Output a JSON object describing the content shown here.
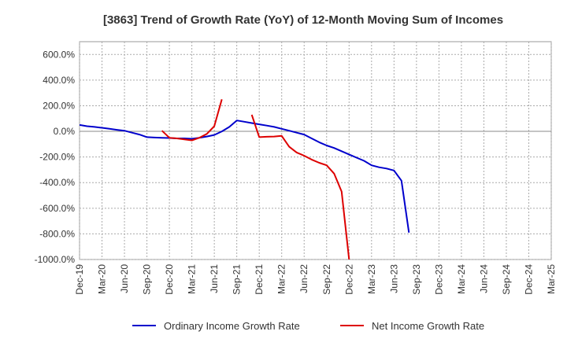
{
  "chart_data": {
    "type": "line",
    "title": "[3863]  Trend of Growth Rate (YoY) of 12-Month Moving Sum of Incomes",
    "xlabel": "",
    "ylabel": "",
    "ylim": [
      -1000,
      700
    ],
    "y_ticks": [
      "600.0%",
      "400.0%",
      "200.0%",
      "0.0%",
      "-200.0%",
      "-400.0%",
      "-600.0%",
      "-800.0%",
      "-1000.0%"
    ],
    "y_tick_values": [
      600,
      400,
      200,
      0,
      -200,
      -400,
      -600,
      -800,
      -1000
    ],
    "x_ticks": [
      "Dec-19",
      "Mar-20",
      "Jun-20",
      "Sep-20",
      "Dec-20",
      "Mar-21",
      "Jun-21",
      "Sep-21",
      "Dec-21",
      "Mar-22",
      "Jun-22",
      "Sep-22",
      "Dec-22",
      "Mar-23",
      "Jun-23",
      "Sep-23",
      "Dec-23",
      "Mar-24",
      "Jun-24",
      "Sep-24",
      "Dec-24",
      "Mar-25"
    ],
    "grid": true,
    "legend_position": "bottom",
    "series": [
      {
        "name": "Ordinary Income Growth Rate",
        "color": "#0000cc",
        "values": [
          [
            "Dec-19",
            50
          ],
          [
            "Jan-20",
            40
          ],
          [
            "Feb-20",
            35
          ],
          [
            "Mar-20",
            28
          ],
          [
            "Apr-20",
            20
          ],
          [
            "May-20",
            12
          ],
          [
            "Jun-20",
            5
          ],
          [
            "Jul-20",
            -10
          ],
          [
            "Aug-20",
            -25
          ],
          [
            "Sep-20",
            -45
          ],
          [
            "Oct-20",
            -48
          ],
          [
            "Nov-20",
            -50
          ],
          [
            "Dec-20",
            -52
          ],
          [
            "Jan-21",
            -55
          ],
          [
            "Feb-21",
            -55
          ],
          [
            "Mar-21",
            -58
          ],
          [
            "Apr-21",
            -50
          ],
          [
            "May-21",
            -40
          ],
          [
            "Jun-21",
            -28
          ],
          [
            "Jul-21",
            0
          ],
          [
            "Aug-21",
            35
          ],
          [
            "Sep-21",
            85
          ],
          [
            "Oct-21",
            75
          ],
          [
            "Nov-21",
            65
          ],
          [
            "Dec-21",
            55
          ],
          [
            "Jan-22",
            45
          ],
          [
            "Feb-22",
            35
          ],
          [
            "Mar-22",
            20
          ],
          [
            "Apr-22",
            5
          ],
          [
            "May-22",
            -10
          ],
          [
            "Jun-22",
            -25
          ],
          [
            "Jul-22",
            -55
          ],
          [
            "Aug-22",
            -85
          ],
          [
            "Sep-22",
            -110
          ],
          [
            "Oct-22",
            -130
          ],
          [
            "Nov-22",
            -155
          ],
          [
            "Dec-22",
            -180
          ],
          [
            "Jan-23",
            -205
          ],
          [
            "Feb-23",
            -230
          ],
          [
            "Mar-23",
            -265
          ],
          [
            "Apr-23",
            -280
          ],
          [
            "May-23",
            -290
          ],
          [
            "Jun-23",
            -305
          ],
          [
            "Jul-23",
            -385
          ],
          [
            "Aug-23",
            -790
          ]
        ]
      },
      {
        "name": "Net Income Growth Rate",
        "color": "#dd0000",
        "segments": [
          [
            [
              "Nov-20",
              5
            ],
            [
              "Dec-20",
              -50
            ],
            [
              "Jan-21",
              -55
            ],
            [
              "Feb-21",
              -62
            ],
            [
              "Mar-21",
              -70
            ],
            [
              "Apr-21",
              -50
            ],
            [
              "May-21",
              -20
            ],
            [
              "Jun-21",
              40
            ],
            [
              "Jul-21",
              250
            ]
          ],
          [
            [
              "Nov-21",
              130
            ],
            [
              "Dec-21",
              -45
            ],
            [
              "Jan-22",
              -42
            ],
            [
              "Feb-22",
              -40
            ],
            [
              "Mar-22",
              -35
            ],
            [
              "Apr-22",
              -120
            ],
            [
              "May-22",
              -165
            ],
            [
              "Jun-22",
              -190
            ],
            [
              "Jul-22",
              -220
            ],
            [
              "Aug-22",
              -245
            ],
            [
              "Sep-22",
              -265
            ],
            [
              "Oct-22",
              -330
            ],
            [
              "Nov-22",
              -470
            ],
            [
              "Dec-22",
              -1000
            ]
          ]
        ]
      }
    ]
  }
}
